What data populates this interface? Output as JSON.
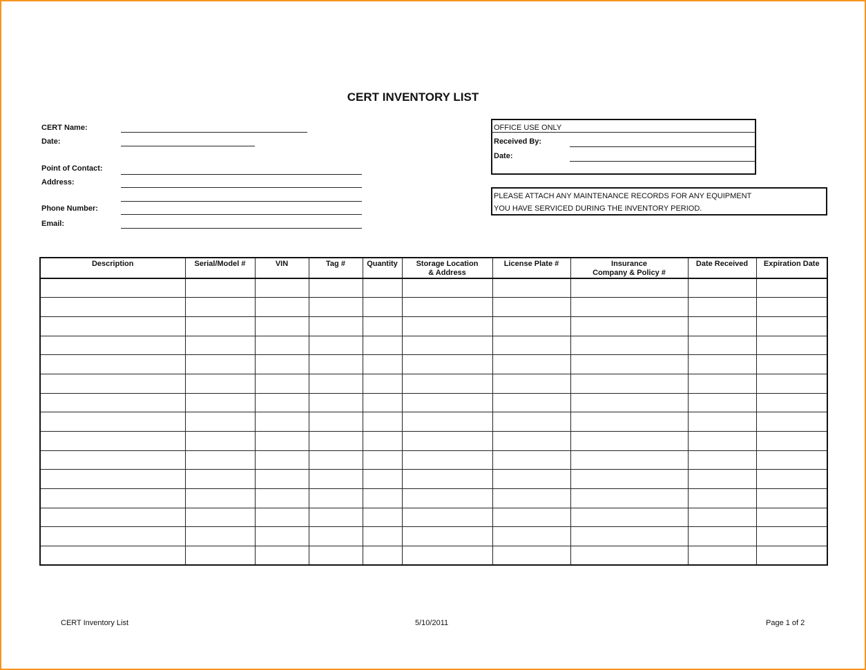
{
  "title": "CERT INVENTORY LIST",
  "fields": {
    "cert_name": "CERT Name:",
    "date": "Date:",
    "point_of_contact": "Point of Contact:",
    "address": "Address:",
    "phone": "Phone Number:",
    "email": "Email:"
  },
  "office": {
    "heading": "OFFICE USE ONLY",
    "received_by": "Received By:",
    "date": "Date:"
  },
  "notice": {
    "line1": "PLEASE ATTACH ANY MAINTENANCE RECORDS FOR ANY EQUIPMENT",
    "line2": "YOU HAVE SERVICED DURING THE INVENTORY PERIOD."
  },
  "table": {
    "columns": [
      "Description",
      "Serial/Model #",
      "VIN",
      "Tag #",
      "Quantity",
      "Storage Location\n& Address",
      "License Plate #",
      "Insurance\nCompany & Policy #",
      "Date Received",
      "Expiration Date"
    ],
    "empty_rows": 15
  },
  "footer": {
    "left": "CERT Inventory List",
    "center": "5/10/2011",
    "right": "Page 1 of 2"
  }
}
